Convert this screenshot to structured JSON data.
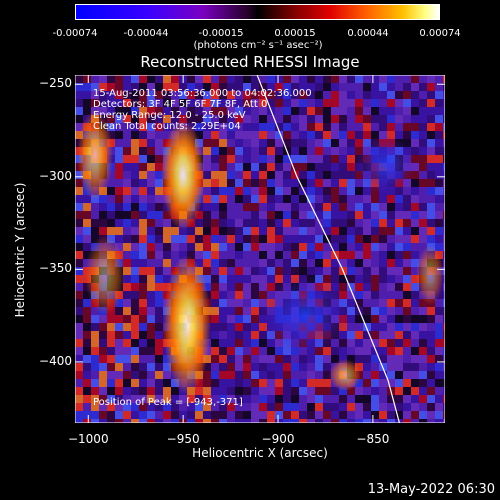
{
  "colorbar": {
    "ticks": [
      "-0.00074",
      "-0.00044",
      "-0.00015",
      "0.00015",
      "0.00044",
      "0.00074"
    ],
    "unit": "(photons cm⁻² s⁻¹ asec⁻²)"
  },
  "annotations": {
    "time": "15-Aug-2011 03:56:36.000 to 04:02:36.000",
    "detectors": "Detectors: 3F 4F 5F 6F 7F 8F, Att 0",
    "energy": "Energy Range: 12.0 - 25.0 keV",
    "method": "Clean     Total counts: 2.29E+04",
    "peak": "Position of Peak = [-943,-371]"
  },
  "footer": "13-May-2022 06:30",
  "chart_data": {
    "type": "heatmap",
    "title": "Reconstructed RHESSI Image",
    "xlabel": "Heliocentric X (arcsec)",
    "ylabel": "Heliocentric Y (arcsec)",
    "xlim": [
      -1007,
      -812
    ],
    "ylim": [
      -433,
      -245
    ],
    "xticks": [
      -1000,
      -950,
      -900,
      -850
    ],
    "yticks": [
      -250,
      -300,
      -350,
      -400
    ],
    "color_range": [
      -0.00074,
      0.00074
    ],
    "peak_position": [
      -943,
      -371
    ],
    "limb_curve": [
      [
        -911,
        -245
      ],
      [
        -890,
        -300
      ],
      [
        -866,
        -350
      ],
      [
        -842,
        -410
      ],
      [
        -836,
        -433
      ]
    ]
  }
}
